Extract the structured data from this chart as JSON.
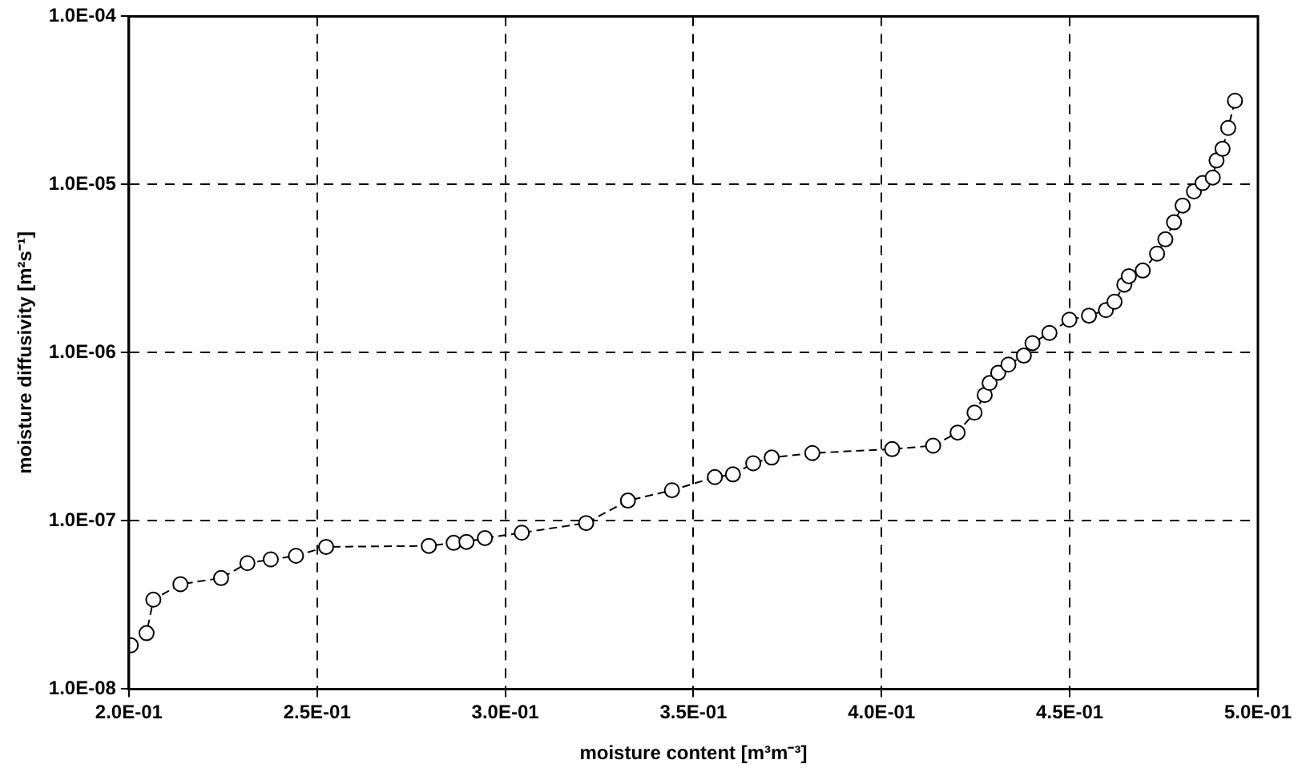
{
  "chart_data": {
    "type": "line",
    "xlabel": "moisture content [m³m⁻³]",
    "ylabel": "moisture diffusivity [m²s⁻¹]",
    "log": "y",
    "grid": true,
    "legend": false,
    "marker": "circle",
    "line_style": "dashed",
    "xlim": [
      0.2,
      0.5
    ],
    "xticks": [
      {
        "value": 0.2,
        "label": "2.0E-01"
      },
      {
        "value": 0.25,
        "label": "2.5E-01"
      },
      {
        "value": 0.3,
        "label": "3.0E-01"
      },
      {
        "value": 0.35,
        "label": "3.5E-01"
      },
      {
        "value": 0.4,
        "label": "4.0E-01"
      },
      {
        "value": 0.45,
        "label": "4.5E-01"
      },
      {
        "value": 0.5,
        "label": "5.0E-01"
      }
    ],
    "ylim": [
      1e-08,
      0.0001
    ],
    "yticks": [
      {
        "value": 1e-08,
        "label": "1.0E-08"
      },
      {
        "value": 1e-07,
        "label": "1.0E-07"
      },
      {
        "value": 1e-06,
        "label": "1.0E-06"
      },
      {
        "value": 1e-05,
        "label": "1.0E-05"
      },
      {
        "value": 0.0001,
        "label": "1.0E-04"
      }
    ],
    "series": [
      {
        "color": "#000000",
        "x": [
          0.2005,
          0.2047,
          0.2065,
          0.2137,
          0.2245,
          0.2315,
          0.2377,
          0.2444,
          0.2524,
          0.2797,
          0.2863,
          0.2897,
          0.2946,
          0.3044,
          0.3215,
          0.3326,
          0.3443,
          0.3557,
          0.3605,
          0.3659,
          0.3708,
          0.3816,
          0.4028,
          0.4137,
          0.4202,
          0.4247,
          0.4274,
          0.4287,
          0.431,
          0.4337,
          0.4378,
          0.4401,
          0.4446,
          0.4499,
          0.4551,
          0.4596,
          0.4619,
          0.4645,
          0.4657,
          0.4694,
          0.4732,
          0.4754,
          0.4777,
          0.48,
          0.483,
          0.4853,
          0.488,
          0.489,
          0.4906,
          0.4921,
          0.4939
        ],
        "values": [
          1.82e-08,
          2.15e-08,
          3.4e-08,
          4.2e-08,
          4.57e-08,
          5.6e-08,
          5.9e-08,
          6.2e-08,
          7e-08,
          7.1e-08,
          7.4e-08,
          7.5e-08,
          7.9e-08,
          8.5e-08,
          9.7e-08,
          1.32e-07,
          1.52e-07,
          1.82e-07,
          1.89e-07,
          2.2e-07,
          2.38e-07,
          2.53e-07,
          2.67e-07,
          2.8e-07,
          3.35e-07,
          4.4e-07,
          5.6e-07,
          6.6e-07,
          7.6e-07,
          8.5e-07,
          9.6e-07,
          1.14e-06,
          1.31e-06,
          1.57e-06,
          1.66e-06,
          1.79e-06,
          2.01e-06,
          2.54e-06,
          2.85e-06,
          3.08e-06,
          3.88e-06,
          4.72e-06,
          5.96e-06,
          7.5e-06,
          9.1e-06,
          1.02e-05,
          1.1e-05,
          1.39e-05,
          1.63e-05,
          2.17e-05,
          3.15e-05
        ]
      }
    ]
  }
}
